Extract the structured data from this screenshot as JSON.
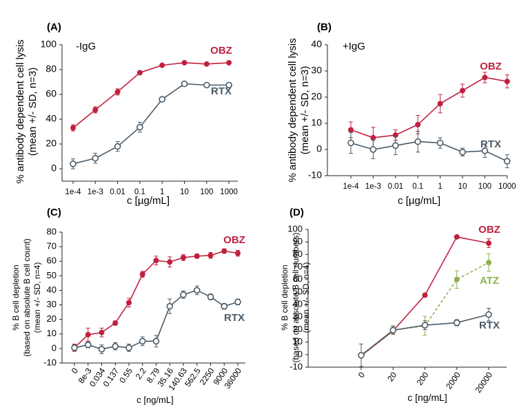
{
  "colors": {
    "obz": "#c0213e",
    "rtx": "#4a5a66",
    "atz": "#8fb04e",
    "axis": "#222222"
  },
  "chart_data": [
    {
      "type": "line",
      "panel_label": "(A)",
      "annotation": "-IgG",
      "xlabel": "c [µg/mL]",
      "ylabel": "% antibody dependent cell lysis",
      "ylabel2": "(mean +/- SD, n=3)",
      "categories": [
        "1e-4",
        "1e-3",
        "0.01",
        "0.1",
        "1",
        "10",
        "100",
        "1000"
      ],
      "ylim": [
        -10,
        100
      ],
      "yticks": [
        0,
        20,
        40,
        60,
        80,
        100
      ],
      "series": [
        {
          "name": "OBZ",
          "style": "obz",
          "values": [
            33,
            47.5,
            62,
            77.5,
            83.5,
            85.5,
            84.5,
            85.5
          ],
          "err": [
            2.5,
            2.5,
            2.5,
            1,
            1,
            1,
            1,
            1
          ]
        },
        {
          "name": "RTX",
          "style": "rtx",
          "values": [
            4,
            8.5,
            18,
            33.5,
            56,
            68.5,
            67.5,
            67.5
          ],
          "err": [
            4,
            4,
            4,
            4,
            1.5,
            1,
            1,
            2
          ]
        }
      ]
    },
    {
      "type": "line",
      "panel_label": "(B)",
      "annotation": "+IgG",
      "xlabel": "c [µg/mL]",
      "ylabel": "% antibody dependent cell lysis",
      "ylabel2": "(mean +/- SD, n=3)",
      "categories": [
        "1e-4",
        "1e-3",
        "0.01",
        "0.1",
        "1",
        "10",
        "100",
        "1000"
      ],
      "ylim": [
        -10,
        40
      ],
      "yticks": [
        -10,
        0,
        10,
        20,
        30,
        40
      ],
      "series": [
        {
          "name": "OBZ",
          "style": "obz",
          "values": [
            7.5,
            4.5,
            5.5,
            9.5,
            17.5,
            22.5,
            27.5,
            26
          ],
          "err": [
            3,
            4,
            2,
            3.5,
            3.5,
            2.5,
            2,
            2.5
          ]
        },
        {
          "name": "RTX",
          "style": "rtx",
          "values": [
            2.5,
            0,
            1.5,
            3,
            2.5,
            -1,
            -0.5,
            -4.5
          ],
          "err": [
            4,
            3.5,
            3.5,
            4,
            2,
            1.5,
            2.5,
            2.5
          ]
        }
      ]
    },
    {
      "type": "line",
      "panel_label": "(C)",
      "xlabel": "c [ng/mL]",
      "ylabel": "% B cell depletion",
      "ylabel2": "(based on absolute B cell count)",
      "ylabel3": "(mean +/- SD, n=4)",
      "categories": [
        "0",
        "8e-3",
        "0.034",
        "0.137",
        "0.55",
        "2.2",
        "8.79",
        "35.16",
        "140.63",
        "562.5",
        "2250",
        "9000",
        "36000"
      ],
      "ylim": [
        -10,
        80
      ],
      "yticks": [
        -10,
        0,
        10,
        20,
        30,
        40,
        50,
        60,
        70,
        80
      ],
      "series": [
        {
          "name": "OBZ",
          "style": "obz",
          "values": [
            0.5,
            9.5,
            11,
            17.5,
            31.5,
            51,
            60.5,
            59.5,
            62.5,
            63.5,
            64,
            67,
            65.5
          ],
          "err": [
            2.5,
            4.5,
            3,
            1.5,
            3,
            2,
            3,
            3.5,
            2,
            1.5,
            2,
            1.5,
            2
          ]
        },
        {
          "name": "RTX",
          "style": "rtx",
          "values": [
            0.5,
            2.5,
            -0.5,
            1.5,
            0.5,
            5,
            5,
            29,
            37,
            40,
            35.5,
            29,
            32
          ],
          "err": [
            2,
            2,
            3,
            2.5,
            2.5,
            3,
            4,
            5,
            2.5,
            3,
            2,
            2,
            2
          ]
        }
      ]
    },
    {
      "type": "line",
      "panel_label": "(D)",
      "xlabel": "c [ng/mL]",
      "ylabel": "% B cell depletion",
      "ylabel2": "(based on absolute B cell numbers)",
      "ylabel3": "(mean +/- SD, n=4)",
      "categories": [
        "0",
        "20",
        "200",
        "2000",
        "20000"
      ],
      "ylim": [
        -10,
        100
      ],
      "yticks": [
        -10,
        0,
        10,
        20,
        30,
        40,
        50,
        60,
        70,
        80,
        90,
        100
      ],
      "series": [
        {
          "name": "OBZ",
          "style": "obz",
          "values": [
            -1,
            19,
            47.5,
            94,
            89
          ],
          "err": [
            0,
            0,
            0,
            0,
            3.5
          ]
        },
        {
          "name": "ATZ",
          "style": "atz",
          "values": [
            -1,
            19.5,
            23,
            60,
            73.5
          ],
          "err": [
            0,
            3.5,
            7.5,
            7,
            7
          ]
        },
        {
          "name": "RTX",
          "style": "rtx",
          "values": [
            -0.5,
            19.5,
            23.5,
            25.5,
            32
          ],
          "err": [
            9,
            3,
            3.5,
            2.5,
            5
          ]
        }
      ]
    }
  ]
}
